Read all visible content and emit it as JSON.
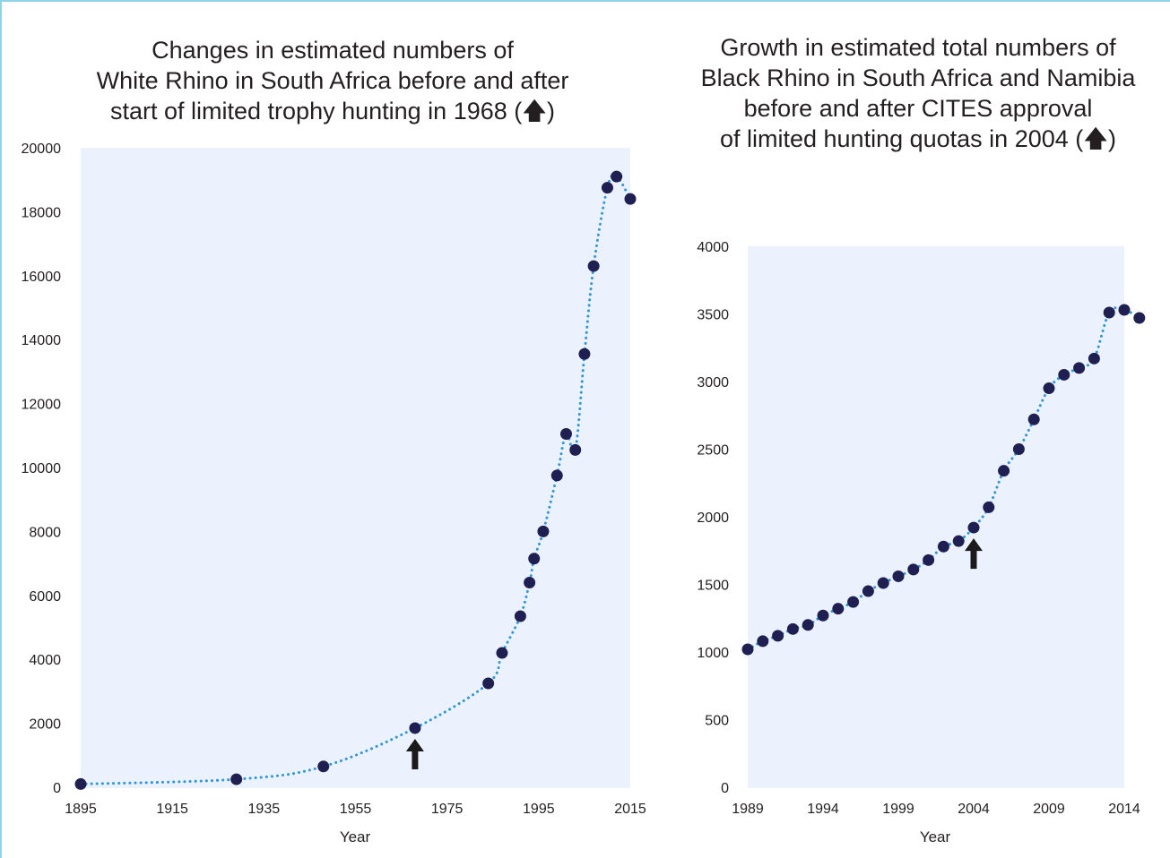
{
  "chart_data": [
    {
      "type": "scatter",
      "title_lines": [
        "Changes in estimated numbers of",
        "White Rhino in South Africa before and after",
        "start of limited trophy hunting in 1968 (🡅)"
      ],
      "xlabel": "Year",
      "ylabel": "",
      "xlim": [
        1895,
        2015
      ],
      "ylim": [
        0,
        20000
      ],
      "x_ticks": [
        "1895",
        "1915",
        "1935",
        "1955",
        "1975",
        "1995",
        "2015"
      ],
      "y_ticks": [
        "0",
        "2000",
        "4000",
        "6000",
        "8000",
        "10000",
        "12000",
        "14000",
        "16000",
        "18000",
        "20000"
      ],
      "series": [
        {
          "x": [
            1895,
            1929,
            1948,
            1968,
            1984,
            1987,
            1991,
            1993,
            1994,
            1996,
            1999,
            2001,
            2003,
            2005,
            2007,
            2010,
            2012,
            2015
          ],
          "y": [
            100,
            250,
            650,
            1850,
            3250,
            4200,
            5350,
            6400,
            7150,
            8000,
            9750,
            11050,
            10550,
            13550,
            16300,
            18750,
            19100,
            18400
          ]
        }
      ],
      "trend_line": "dotted",
      "annotation_arrow_x": 1968
    },
    {
      "type": "scatter",
      "title_lines": [
        "Growth in estimated total numbers of",
        "Black Rhino in South Africa and Namibia",
        "before and after CITES approval",
        "of limited hunting quotas in 2004 (🡅)"
      ],
      "xlabel": "Year",
      "ylabel": "",
      "xlim": [
        1989,
        2014
      ],
      "ylim": [
        0,
        4000
      ],
      "x_ticks": [
        "1989",
        "1994",
        "1999",
        "2004",
        "2009",
        "2014"
      ],
      "y_ticks": [
        "0",
        "500",
        "1000",
        "1500",
        "2000",
        "2500",
        "3000",
        "3500",
        "4000"
      ],
      "series": [
        {
          "x": [
            1989,
            1990,
            1991,
            1992,
            1993,
            1994,
            1995,
            1996,
            1997,
            1998,
            1999,
            2000,
            2001,
            2002,
            2003,
            2004,
            2005,
            2006,
            2007,
            2008,
            2009,
            2010,
            2011,
            2012,
            2013,
            2014,
            2015
          ],
          "y": [
            1020,
            1080,
            1120,
            1170,
            1200,
            1270,
            1320,
            1370,
            1450,
            1510,
            1560,
            1610,
            1680,
            1780,
            1820,
            1920,
            2070,
            2340,
            2500,
            2720,
            2950,
            3050,
            3100,
            3170,
            3510,
            3530,
            3470
          ]
        }
      ],
      "trend_line": "dotted",
      "annotation_arrow_x": 2004
    }
  ],
  "colors": {
    "plot_bg": "#ecf2fd",
    "point": "#1f1f52",
    "trend": "#2e96dc",
    "arrow": "#1a1a1a",
    "frame": "#8fd3ea"
  }
}
